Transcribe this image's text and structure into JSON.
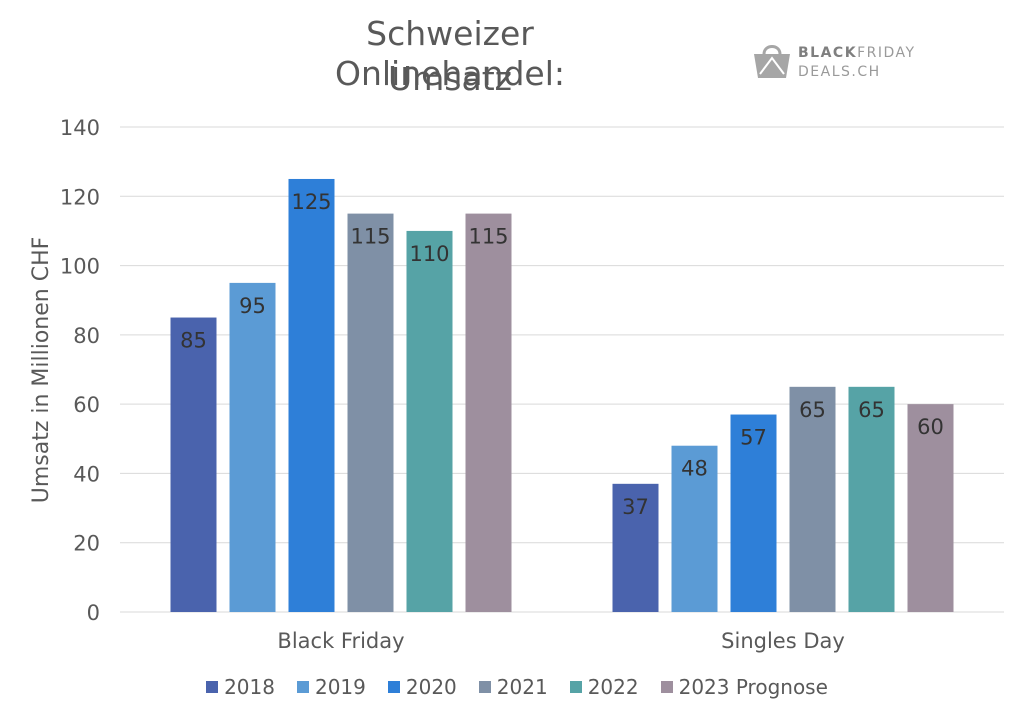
{
  "title_lines": [
    "Schweizer Onlinehandel:",
    "Umsatz"
  ],
  "logo": {
    "line1_bold": "BLACK",
    "line1_rest": "FRIDAY",
    "line2": "DEALS.CH"
  },
  "colors": {
    "2018": "#4a63ad",
    "2019": "#5b9bd5",
    "2020": "#2e7fd8",
    "2021": "#7f90a6",
    "2022": "#56a3a6",
    "2023 Prognose": "#9e8f9e",
    "gridline": "#d9d9d9",
    "text": "#595959"
  },
  "chart_data": {
    "type": "bar",
    "title": "Schweizer Onlinehandel: Umsatz",
    "xlabel": "",
    "ylabel": "Umsatz in Millionen CHF",
    "ylim": [
      0,
      140
    ],
    "yticks": [
      0,
      20,
      40,
      60,
      80,
      100,
      120,
      140
    ],
    "categories": [
      "Black Friday",
      "Singles Day"
    ],
    "series": [
      {
        "name": "2018",
        "values": [
          85,
          37
        ]
      },
      {
        "name": "2019",
        "values": [
          95,
          48
        ]
      },
      {
        "name": "2020",
        "values": [
          125,
          57
        ]
      },
      {
        "name": "2021",
        "values": [
          115,
          65
        ]
      },
      {
        "name": "2022",
        "values": [
          110,
          65
        ]
      },
      {
        "name": "2023 Prognose",
        "values": [
          115,
          60
        ]
      }
    ],
    "legend_position": "bottom",
    "grid": true
  }
}
